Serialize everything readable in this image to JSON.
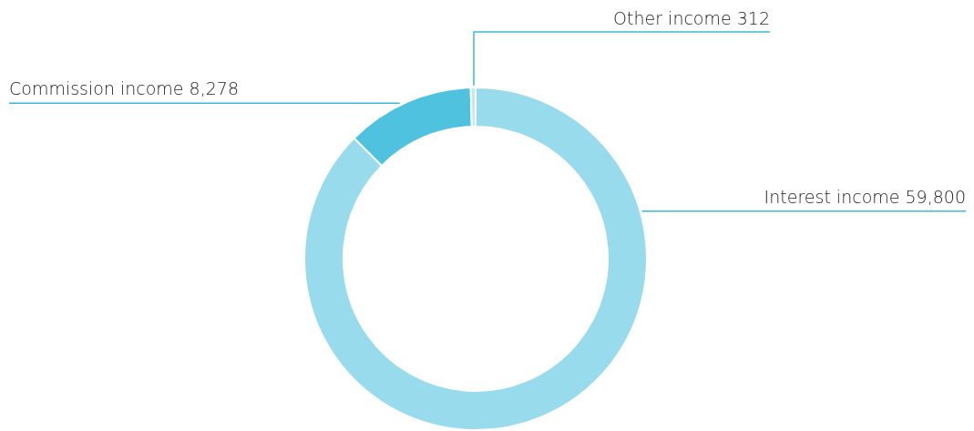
{
  "chart_data": {
    "type": "donut",
    "categories": [
      "Interest income",
      "Commission income",
      "Other income"
    ],
    "values": [
      59800,
      8278,
      312
    ],
    "value_labels": [
      "59,800",
      "8,278",
      "312"
    ],
    "colors": [
      "#98dbed",
      "#4fc2df",
      "#c2e8f3"
    ]
  }
}
